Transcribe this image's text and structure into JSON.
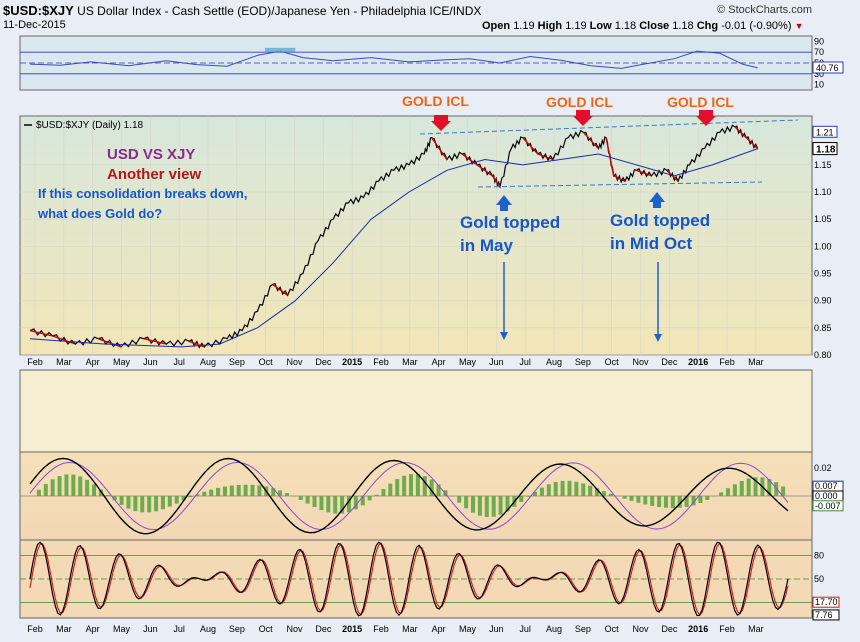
{
  "header": {
    "symbol": "$USD:$XJY",
    "name": "US Dollar Index - Cash Settle (EOD)/Japanese Yen - Philadelphia",
    "exchange": "ICE/INDX",
    "date": "11-Dec-2015",
    "brand": "© StockCharts.com",
    "open_label": "Open",
    "open": "1.19",
    "high_label": "High",
    "high": "1.19",
    "low_label": "Low",
    "low": "1.18",
    "close_label": "Close",
    "close": "1.18",
    "chg_label": "Chg",
    "chg": "-0.01 (-0.90%)"
  },
  "colors": {
    "price": "#000000",
    "price_down": "#cc0000",
    "ma": "#1a2aa8",
    "rsi": "#3a4db8",
    "annot_gold": "#ee6611",
    "annot_blue": "#1855c8",
    "title_purple": "#8a2a8a",
    "title_red": "#b01818"
  },
  "chart_data": [
    {
      "type": "line",
      "panel": "rsi",
      "y_ticks": [
        "90",
        "70",
        "50",
        "30",
        "10"
      ],
      "ylim": [
        0,
        100
      ],
      "current_value_label": "40.76",
      "reference_lines": [
        70,
        30
      ],
      "series": [
        {
          "name": "RSI",
          "points": [
            [
              0,
              48
            ],
            [
              0.04,
              46
            ],
            [
              0.08,
              52
            ],
            [
              0.13,
              45
            ],
            [
              0.18,
              54
            ],
            [
              0.22,
              47
            ],
            [
              0.26,
              44
            ],
            [
              0.3,
              64
            ],
            [
              0.33,
              72
            ],
            [
              0.36,
              60
            ],
            [
              0.4,
              54
            ],
            [
              0.45,
              60
            ],
            [
              0.5,
              52
            ],
            [
              0.55,
              56
            ],
            [
              0.58,
              58
            ],
            [
              0.62,
              50
            ],
            [
              0.66,
              62
            ],
            [
              0.7,
              55
            ],
            [
              0.74,
              45
            ],
            [
              0.78,
              40
            ],
            [
              0.81,
              48
            ],
            [
              0.85,
              58
            ],
            [
              0.88,
              72
            ],
            [
              0.91,
              68
            ],
            [
              0.94,
              48
            ],
            [
              0.96,
              41
            ]
          ]
        }
      ],
      "highlight_above": 70
    },
    {
      "type": "line",
      "panel": "price",
      "legend_label": "$USD:$XJY (Daily) 1.18",
      "y_ticks": [
        "1.21",
        "1.18",
        "1.15",
        "1.10",
        "1.05",
        "1.00",
        "0.95",
        "0.90",
        "0.85",
        "0.80"
      ],
      "ylim": [
        0.8,
        1.24
      ],
      "current_price_label": "1.18",
      "price_box_label": "1.21",
      "x_ticks": [
        "Feb",
        "Mar",
        "Apr",
        "May",
        "Jun",
        "Jul",
        "Aug",
        "Sep",
        "Oct",
        "Nov",
        "Dec",
        "2015",
        "Feb",
        "Mar",
        "Apr",
        "May",
        "Jun",
        "Jul",
        "Aug",
        "Sep",
        "Oct",
        "Nov",
        "Dec",
        "2016",
        "Feb",
        "Mar"
      ],
      "series": [
        {
          "name": "$USD:$XJY",
          "points": [
            [
              0,
              0.845
            ],
            [
              0.03,
              0.835
            ],
            [
              0.06,
              0.82
            ],
            [
              0.09,
              0.83
            ],
            [
              0.12,
              0.815
            ],
            [
              0.15,
              0.83
            ],
            [
              0.18,
              0.82
            ],
            [
              0.21,
              0.825
            ],
            [
              0.23,
              0.815
            ],
            [
              0.26,
              0.83
            ],
            [
              0.28,
              0.845
            ],
            [
              0.3,
              0.88
            ],
            [
              0.32,
              0.93
            ],
            [
              0.34,
              0.91
            ],
            [
              0.36,
              0.95
            ],
            [
              0.38,
              1.01
            ],
            [
              0.4,
              1.05
            ],
            [
              0.42,
              1.08
            ],
            [
              0.44,
              1.09
            ],
            [
              0.46,
              1.12
            ],
            [
              0.48,
              1.14
            ],
            [
              0.5,
              1.15
            ],
            [
              0.52,
              1.17
            ],
            [
              0.53,
              1.2
            ],
            [
              0.55,
              1.16
            ],
            [
              0.57,
              1.17
            ],
            [
              0.59,
              1.15
            ],
            [
              0.61,
              1.13
            ],
            [
              0.62,
              1.11
            ],
            [
              0.635,
              1.18
            ],
            [
              0.65,
              1.2
            ],
            [
              0.67,
              1.17
            ],
            [
              0.69,
              1.16
            ],
            [
              0.71,
              1.2
            ],
            [
              0.73,
              1.21
            ],
            [
              0.75,
              1.18
            ],
            [
              0.76,
              1.2
            ],
            [
              0.77,
              1.13
            ],
            [
              0.785,
              1.12
            ],
            [
              0.8,
              1.14
            ],
            [
              0.82,
              1.13
            ],
            [
              0.84,
              1.14
            ],
            [
              0.855,
              1.12
            ],
            [
              0.87,
              1.15
            ],
            [
              0.89,
              1.18
            ],
            [
              0.91,
              1.21
            ],
            [
              0.93,
              1.22
            ],
            [
              0.945,
              1.2
            ],
            [
              0.96,
              1.18
            ]
          ]
        },
        {
          "name": "MA",
          "points": [
            [
              0,
              0.83
            ],
            [
              0.1,
              0.82
            ],
            [
              0.2,
              0.815
            ],
            [
              0.25,
              0.82
            ],
            [
              0.3,
              0.85
            ],
            [
              0.35,
              0.9
            ],
            [
              0.4,
              0.97
            ],
            [
              0.45,
              1.05
            ],
            [
              0.5,
              1.1
            ],
            [
              0.55,
              1.14
            ],
            [
              0.6,
              1.16
            ],
            [
              0.65,
              1.15
            ],
            [
              0.7,
              1.16
            ],
            [
              0.75,
              1.17
            ],
            [
              0.8,
              1.15
            ],
            [
              0.85,
              1.13
            ],
            [
              0.9,
              1.15
            ],
            [
              0.96,
              1.18
            ]
          ]
        }
      ]
    },
    {
      "type": "line",
      "panel": "macd",
      "y_ticks": [
        "0.02"
      ],
      "value_labels": [
        "0.007",
        "0.000",
        "-0.007"
      ],
      "ylim": [
        -0.03,
        0.03
      ]
    },
    {
      "type": "line",
      "panel": "stochastic",
      "y_ticks": [
        "80",
        "50"
      ],
      "value_labels": [
        "17.70",
        "7.76"
      ],
      "ylim": [
        0,
        100
      ],
      "reference_lines": [
        80,
        50,
        20
      ],
      "x_ticks": [
        "Feb",
        "Mar",
        "Apr",
        "May",
        "Jun",
        "Jul",
        "Aug",
        "Sep",
        "Oct",
        "Nov",
        "Dec",
        "2015",
        "Feb",
        "Mar",
        "Apr",
        "May",
        "Jun",
        "Jul",
        "Aug",
        "Sep",
        "Oct",
        "Nov",
        "Dec",
        "2016",
        "Feb",
        "Mar"
      ]
    }
  ],
  "annotations": {
    "gold_icl": "GOLD ICL",
    "title_line1": "USD VS XJY",
    "title_line2": "Another view",
    "question_line1": "If this consolidation breaks down,",
    "question_line2": "what does Gold do?",
    "may_line1": "Gold topped",
    "may_line2": "in May",
    "oct_line1": "Gold topped",
    "oct_line2": "in Mid Oct"
  }
}
